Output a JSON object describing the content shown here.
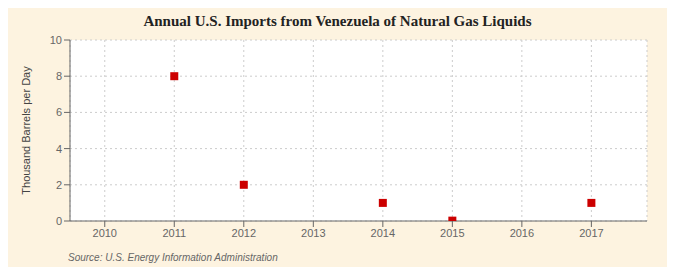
{
  "chart_data": {
    "type": "scatter",
    "title": "Annual U.S. Imports from Venezuela of Natural Gas Liquids",
    "ylabel": "Thousand Barrels per Day",
    "annotations": [
      "Source: U.S. Energy Information Administration"
    ],
    "x": [
      2011,
      2012,
      2014,
      2015,
      2017
    ],
    "values": [
      8,
      2,
      1,
      0.02,
      1
    ],
    "color": "#cc0000",
    "marker": "square",
    "xlim": [
      2009.5,
      2017.8
    ],
    "ylim": [
      0,
      10
    ],
    "xticks": [
      2010,
      2011,
      2012,
      2013,
      2014,
      2015,
      2016,
      2017
    ],
    "yticks": [
      0,
      2,
      4,
      6,
      8,
      10
    ],
    "grid": true
  }
}
